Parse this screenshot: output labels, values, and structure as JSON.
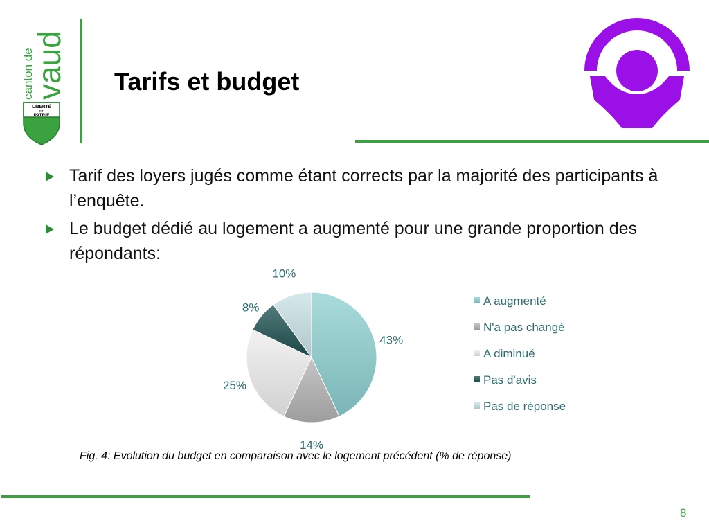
{
  "header": {
    "logo_text": [
      "canton de",
      "vaud"
    ],
    "shield_text": [
      "LIBERTÉ",
      "ET",
      "PATRIE"
    ],
    "title": "Tarifs et budget"
  },
  "bullets": [
    {
      "text": "Tarif des loyers jugés comme étant corrects par la majorité des participants à l’enquête."
    },
    {
      "text": "Le budget dédié au logement a augmenté pour une grande proportion des répondants:"
    }
  ],
  "chart_data": {
    "type": "pie",
    "categories": [
      "A augmenté",
      "N'a pas changé",
      "A diminué",
      "Pas d'avis",
      "Pas de réponse"
    ],
    "values": [
      43,
      14,
      25,
      8,
      10
    ],
    "labels": [
      "43%",
      "14%",
      "25%",
      "8%",
      "10%"
    ],
    "colors": [
      "#8ccfcf",
      "#b2b2b2",
      "#ededed",
      "#1c4f4f",
      "#c8e2e4"
    ],
    "legend_position": "right"
  },
  "caption": "Fig. 4: Evolution du budget en comparaison avec le logement précédent (% de réponse)",
  "page_number": "8"
}
